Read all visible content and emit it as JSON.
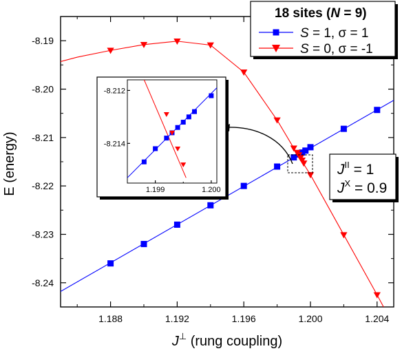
{
  "chart_data": [
    {
      "type": "line",
      "title": "",
      "xlabel_prefix": "J",
      "xlabel_sup": "⊥",
      "xlabel_rest": " (rung coupling)",
      "ylabel": "E (energy)",
      "xlim": [
        1.185,
        1.205
      ],
      "ylim": [
        -8.245,
        -8.185
      ],
      "xticks": [
        1.188,
        1.192,
        1.196,
        1.2,
        1.204
      ],
      "xtick_labels": [
        "1.188",
        "1.192",
        "1.196",
        "1.200",
        "1.204"
      ],
      "yticks": [
        -8.24,
        -8.23,
        -8.22,
        -8.21,
        -8.2,
        -8.19
      ],
      "ytick_labels": [
        "-8.24",
        "-8.23",
        "-8.22",
        "-8.21",
        "-8.20",
        "-8.19"
      ],
      "legend": {
        "title_plain": "18 sites  (",
        "title_italic": "N",
        "title_end": " = 9)",
        "placement": "top-right"
      },
      "series": [
        {
          "name": "S = 1, σ = 1",
          "legend_pre": "S",
          "legend_post": " = 1, σ  = 1",
          "color": "#0000ff",
          "marker": "square",
          "x": [
            1.188,
            1.19,
            1.192,
            1.194,
            1.196,
            1.198,
            1.199,
            1.1993,
            1.1995,
            1.1997,
            1.2,
            1.202,
            1.204
          ],
          "y": [
            -8.236,
            -8.232,
            -8.228,
            -8.224,
            -8.22,
            -8.216,
            -8.2141,
            -8.2135,
            -8.2131,
            -8.2127,
            -8.212,
            -8.2082,
            -8.2043
          ],
          "line_x": [
            1.185,
            1.205
          ],
          "line_y": [
            -8.2418,
            -8.2023
          ]
        },
        {
          "name": "S = 0, σ = -1",
          "legend_pre": "S",
          "legend_post": " = 0, σ  = -1",
          "color": "#ff0000",
          "marker": "triangle-down",
          "x": [
            1.188,
            1.19,
            1.192,
            1.194,
            1.196,
            1.198,
            1.199,
            1.1992,
            1.1993,
            1.1994,
            1.1995,
            1.1996,
            1.2,
            1.202,
            1.204
          ],
          "y": [
            -8.192,
            -8.1908,
            -8.1901,
            -8.1909,
            -8.1965,
            -8.2064,
            -8.2122,
            -8.2131,
            -8.2136,
            -8.2142,
            -8.2147,
            -8.2153,
            -8.2177,
            -8.2301,
            -8.2425
          ],
          "line_x": [
            1.185,
            1.186,
            1.188,
            1.19,
            1.192,
            1.194,
            1.196,
            1.198,
            1.199,
            1.2,
            1.202,
            1.204,
            1.2047
          ],
          "line_y": [
            -8.1943,
            -8.1934,
            -8.192,
            -8.1908,
            -8.1901,
            -8.1909,
            -8.1965,
            -8.2064,
            -8.2122,
            -8.2177,
            -8.2301,
            -8.2425,
            -8.247
          ]
        }
      ],
      "annotation": {
        "line1_pre": "J",
        "line1_sup": "II",
        "line1_post": " = 1",
        "line2_pre": "J",
        "line2_sup": "X",
        "line2_post": " = 0.9"
      }
    },
    {
      "type": "line",
      "role": "inset",
      "xlim": [
        1.1985,
        1.2001
      ],
      "ylim": [
        -8.2155,
        -8.2116
      ],
      "xticks": [
        1.199,
        1.2
      ],
      "xtick_labels": [
        "1.199",
        "1.200"
      ],
      "yticks": [
        -8.212,
        -8.214
      ],
      "ytick_labels": [
        "-8.212",
        "-8.214"
      ],
      "series": [
        {
          "name": "S = 1, σ = 1",
          "color": "#0000ff",
          "marker": "square",
          "x": [
            1.1988,
            1.199,
            1.1992,
            1.1993,
            1.1994,
            1.1995,
            1.1996,
            1.1997,
            1.2
          ],
          "y": [
            -8.2147,
            -8.2142,
            -8.2138,
            -8.2136,
            -8.2134,
            -8.2132,
            -8.213,
            -8.2128,
            -8.2122
          ],
          "line_x": [
            1.1985,
            1.2001
          ],
          "line_y": [
            -8.2153,
            -8.2119
          ]
        },
        {
          "name": "S = 0, σ = -1",
          "color": "#ff0000",
          "marker": "triangle-down",
          "x": [
            1.1992,
            1.1993,
            1.1994,
            1.1995
          ],
          "y": [
            -8.2129,
            -8.2136,
            -8.2142,
            -8.2148
          ],
          "line_x": [
            1.1988,
            1.19955
          ],
          "line_y": [
            -8.2116,
            -8.2153
          ]
        }
      ]
    }
  ]
}
